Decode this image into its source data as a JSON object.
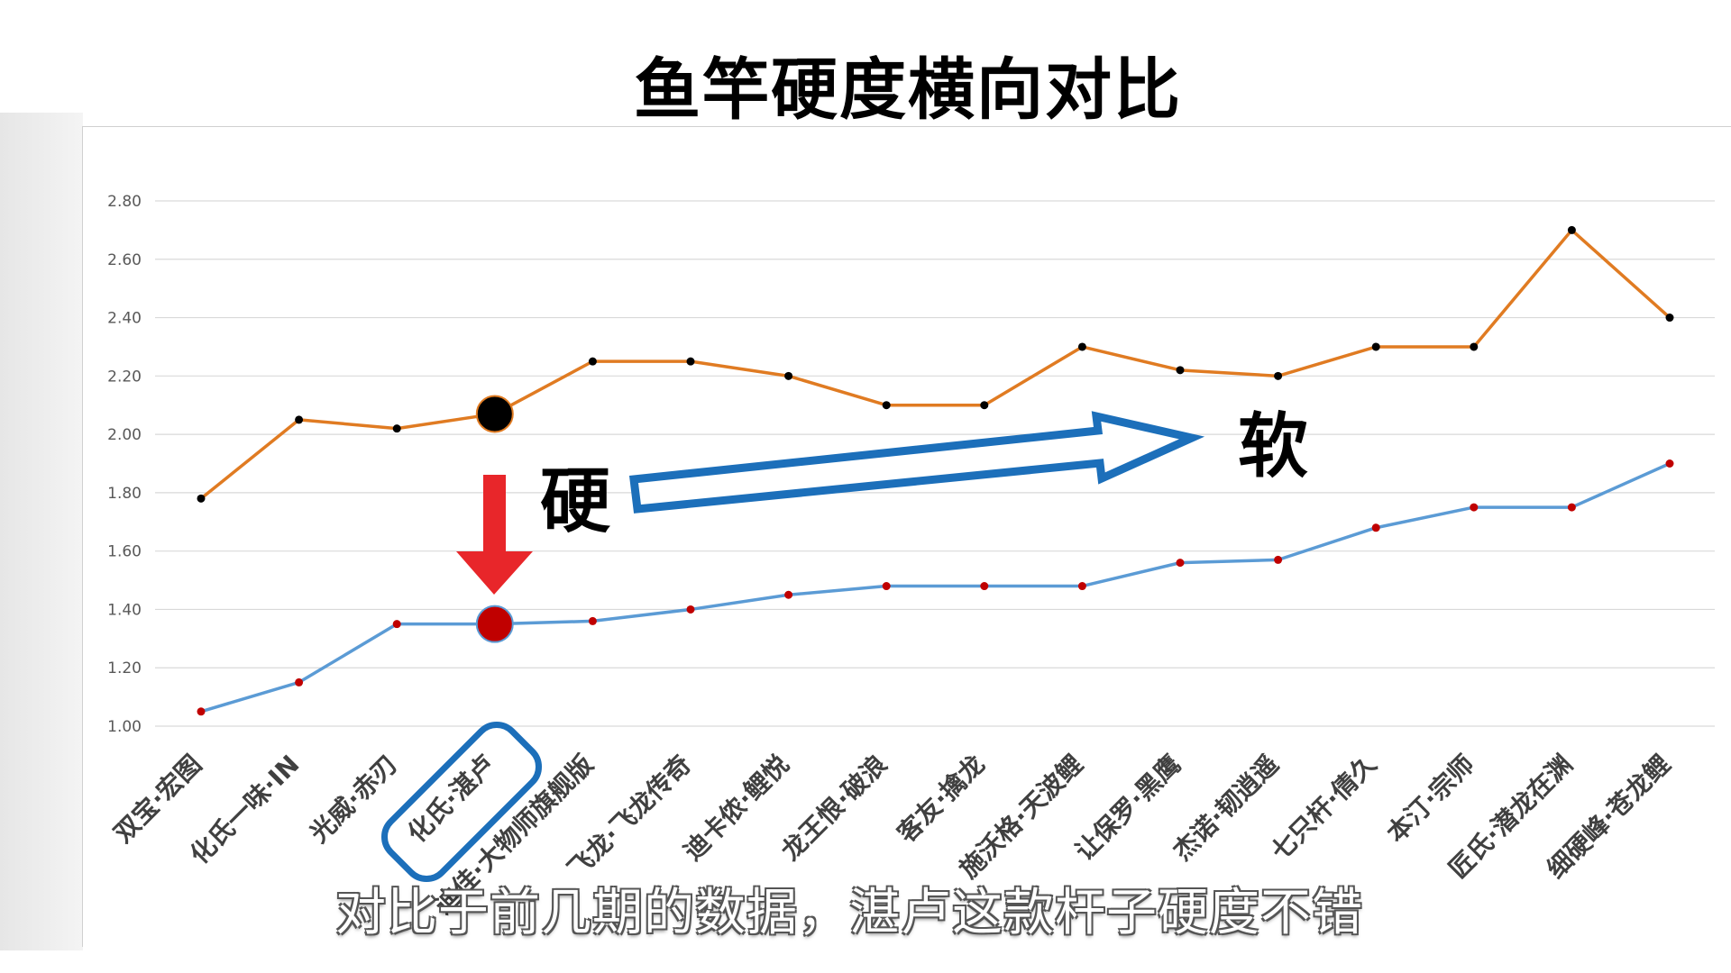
{
  "title": "鱼竿硬度横向对比",
  "subtitle": "对比于前几期的数据，湛卢这款杆子硬度不错",
  "chart_data": {
    "type": "line",
    "title": "鱼竿硬度横向对比",
    "xlabel": "",
    "ylabel": "",
    "categories": [
      "双宝·宏图",
      "化氏一味·IN",
      "光威·赤刃",
      "化氏·湛卢",
      "迪佳·大物师旗舰版",
      "飞龙·飞龙传奇",
      "迪卡侬·鲤悦",
      "龙王恨·破浪",
      "客友·擒龙",
      "施沃格·天波鲤",
      "让保罗·黑鹰",
      "杰诺·韧逍遥",
      "七只杆·倩久",
      "本汀·宗师",
      "匠氏·潜龙在渊",
      "细硬峰·苍龙鲤"
    ],
    "series": [
      {
        "color": "#e07b22",
        "marker": "#000000",
        "values": [
          1.78,
          2.05,
          2.02,
          2.07,
          2.25,
          2.25,
          2.2,
          2.1,
          2.1,
          2.3,
          2.22,
          2.2,
          2.3,
          2.3,
          2.7,
          2.4
        ]
      },
      {
        "color": "#5b9bd5",
        "marker": "#c00000",
        "values": [
          1.05,
          1.15,
          1.35,
          1.35,
          1.36,
          1.4,
          1.45,
          1.48,
          1.48,
          1.48,
          1.56,
          1.57,
          1.68,
          1.75,
          1.75,
          1.9
        ]
      }
    ],
    "ylim": [
      1.0,
      2.8
    ],
    "yticks": [
      "1.00",
      "1.20",
      "1.40",
      "1.60",
      "1.80",
      "2.00",
      "2.20",
      "2.40",
      "2.60",
      "2.80"
    ],
    "grid": true,
    "legend": "none",
    "highlight_index": 3,
    "annotations": {
      "hard": "硬",
      "soft": "软"
    },
    "colors": {
      "arrow_down": "#e8262a",
      "arrow_right": "#1c6fba",
      "highlight_box": "#1c6fba"
    }
  }
}
